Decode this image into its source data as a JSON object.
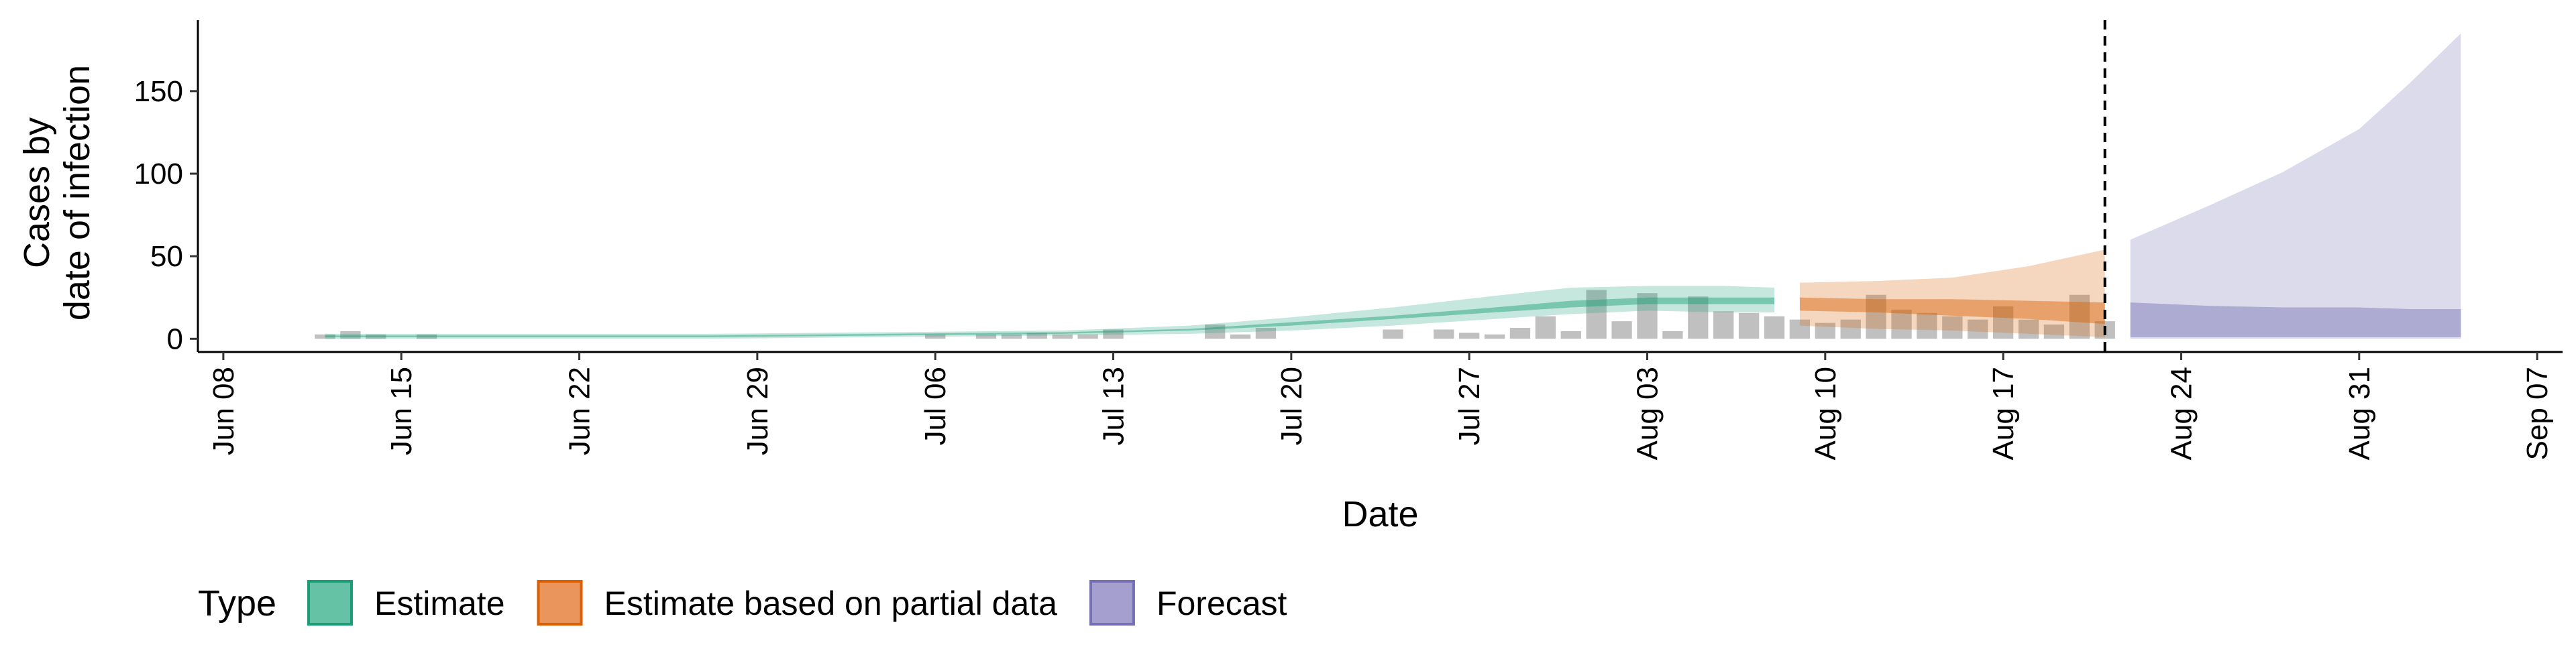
{
  "chart_data": {
    "type": "area",
    "xlabel": "Date",
    "ylabel_lines": [
      "Cases by",
      "date of infection"
    ],
    "ylim": [
      -8,
      193
    ],
    "y_ticks": [
      0,
      50,
      100,
      150
    ],
    "x_range": [
      "2020-06-07",
      "2020-09-08"
    ],
    "x_ticks": [
      {
        "date": "2020-06-08",
        "label": "Jun 08"
      },
      {
        "date": "2020-06-15",
        "label": "Jun 15"
      },
      {
        "date": "2020-06-22",
        "label": "Jun 22"
      },
      {
        "date": "2020-06-29",
        "label": "Jun 29"
      },
      {
        "date": "2020-07-06",
        "label": "Jul 06"
      },
      {
        "date": "2020-07-13",
        "label": "Jul 13"
      },
      {
        "date": "2020-07-20",
        "label": "Jul 20"
      },
      {
        "date": "2020-07-27",
        "label": "Jul 27"
      },
      {
        "date": "2020-08-03",
        "label": "Aug 03"
      },
      {
        "date": "2020-08-10",
        "label": "Aug 10"
      },
      {
        "date": "2020-08-17",
        "label": "Aug 17"
      },
      {
        "date": "2020-08-24",
        "label": "Aug 24"
      },
      {
        "date": "2020-08-31",
        "label": "Aug 31"
      },
      {
        "date": "2020-09-07",
        "label": "Sep 07"
      }
    ],
    "vline_date": "2020-08-21",
    "grid": false,
    "legend_position": "bottom-left",
    "legend": {
      "title": "Type",
      "items": [
        {
          "label": "Estimate",
          "fill": "#66C2A5",
          "stroke": "#1B9E77"
        },
        {
          "label": "Estimate based on partial data",
          "fill": "#E9955C",
          "stroke": "#D95F02"
        },
        {
          "label": "Forecast",
          "fill": "#A59FD0",
          "stroke": "#7570B3"
        }
      ]
    },
    "observed_cases": {
      "color": "#C0C0C0",
      "points": [
        [
          "2020-06-12",
          1
        ],
        [
          "2020-06-13",
          3
        ],
        [
          "2020-06-14",
          1
        ],
        [
          "2020-06-16",
          1
        ],
        [
          "2020-07-06",
          1
        ],
        [
          "2020-07-08",
          1
        ],
        [
          "2020-07-09",
          1
        ],
        [
          "2020-07-10",
          2
        ],
        [
          "2020-07-11",
          1
        ],
        [
          "2020-07-12",
          1
        ],
        [
          "2020-07-13",
          4
        ],
        [
          "2020-07-17",
          7
        ],
        [
          "2020-07-18",
          1
        ],
        [
          "2020-07-19",
          5
        ],
        [
          "2020-07-24",
          4
        ],
        [
          "2020-07-26",
          4
        ],
        [
          "2020-07-27",
          2
        ],
        [
          "2020-07-28",
          1
        ],
        [
          "2020-07-29",
          5
        ],
        [
          "2020-07-30",
          12
        ],
        [
          "2020-07-31",
          3
        ],
        [
          "2020-08-01",
          28
        ],
        [
          "2020-08-02",
          9
        ],
        [
          "2020-08-03",
          26
        ],
        [
          "2020-08-04",
          3
        ],
        [
          "2020-08-05",
          24
        ],
        [
          "2020-08-06",
          15
        ],
        [
          "2020-08-07",
          14
        ],
        [
          "2020-08-08",
          12
        ],
        [
          "2020-08-09",
          10
        ],
        [
          "2020-08-10",
          8
        ],
        [
          "2020-08-11",
          10
        ],
        [
          "2020-08-12",
          25
        ],
        [
          "2020-08-13",
          16
        ],
        [
          "2020-08-14",
          14
        ],
        [
          "2020-08-15",
          12
        ],
        [
          "2020-08-16",
          10
        ],
        [
          "2020-08-17",
          18
        ],
        [
          "2020-08-18",
          10
        ],
        [
          "2020-08-19",
          7
        ],
        [
          "2020-08-20",
          25
        ],
        [
          "2020-08-21",
          9
        ]
      ]
    },
    "series": [
      {
        "name": "Estimate",
        "fill": "#1B9E77",
        "x": [
          "2020-06-12",
          "2020-06-20",
          "2020-06-27",
          "2020-07-04",
          "2020-07-11",
          "2020-07-16",
          "2020-07-20",
          "2020-07-24",
          "2020-07-28",
          "2020-07-31",
          "2020-08-03",
          "2020-08-06",
          "2020-08-08"
        ],
        "lower_outer": [
          0,
          0,
          0,
          1,
          2,
          3,
          5,
          8,
          12,
          15,
          17,
          16,
          16
        ],
        "upper_outer": [
          3,
          3,
          3,
          4,
          5,
          8,
          13,
          19,
          26,
          31,
          32,
          32,
          31
        ],
        "lower_inner": [
          1,
          1,
          1,
          2,
          3,
          5,
          8,
          12,
          16,
          19,
          21,
          21,
          21
        ],
        "upper_inner": [
          2,
          2,
          2,
          3,
          4,
          6,
          10,
          14,
          19,
          23,
          25,
          25,
          25
        ]
      },
      {
        "name": "Estimate based on partial data",
        "fill": "#D95F02",
        "x": [
          "2020-08-09",
          "2020-08-12",
          "2020-08-15",
          "2020-08-18",
          "2020-08-21"
        ],
        "lower_outer": [
          8,
          6,
          5,
          3,
          1
        ],
        "upper_outer": [
          34,
          35,
          37,
          44,
          54
        ],
        "lower_inner": [
          17,
          16,
          14,
          12,
          9
        ],
        "upper_inner": [
          25,
          24,
          24,
          23,
          22
        ]
      },
      {
        "name": "Forecast",
        "fill": "#7570B3",
        "x": [
          "2020-08-22",
          "2020-08-25",
          "2020-08-28",
          "2020-08-31",
          "2020-09-02",
          "2020-09-04"
        ],
        "lower_outer": [
          0,
          0,
          0,
          0,
          0,
          0
        ],
        "upper_outer": [
          60,
          80,
          101,
          127,
          155,
          185
        ],
        "lower_inner": [
          1,
          1,
          1,
          1,
          1,
          1
        ],
        "upper_inner": [
          22,
          20,
          19,
          19,
          18,
          18
        ]
      }
    ]
  }
}
